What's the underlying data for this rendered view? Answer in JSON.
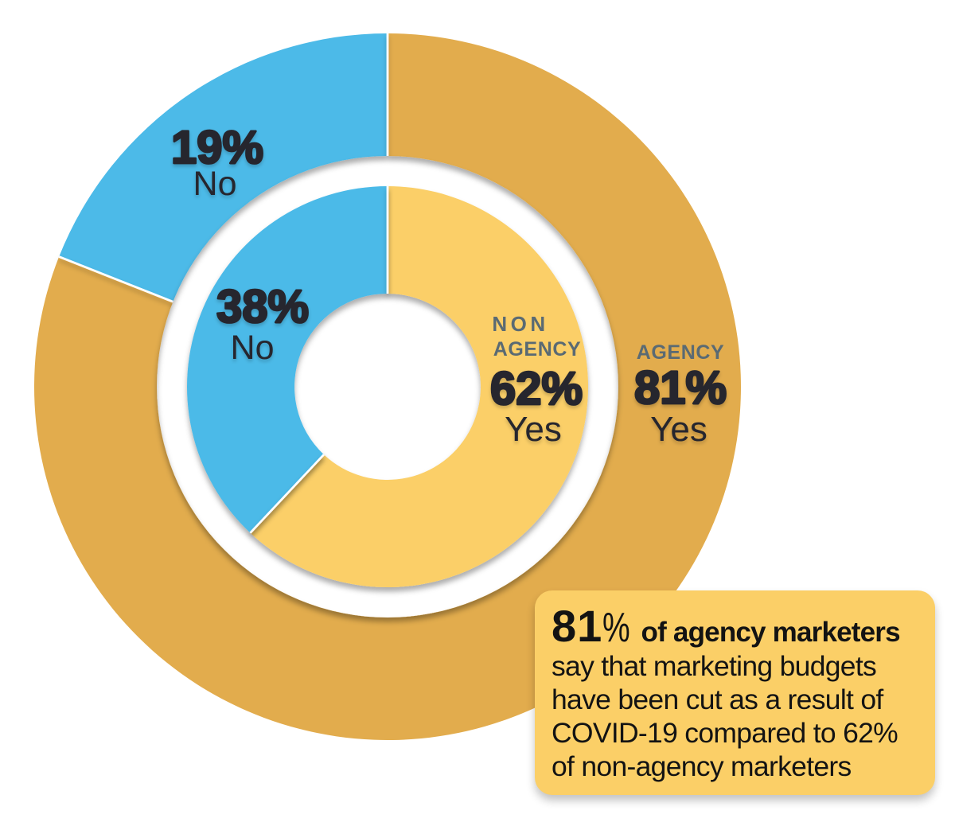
{
  "page": {
    "background": "#FFFFFF"
  },
  "chart_data": {
    "type": "pie",
    "subtype": "concentric-donut",
    "units": "%",
    "direction": "clockwise",
    "start_angle_deg": 0,
    "divider_color": "#FFFFFF",
    "rings": [
      {
        "name": "AGENCY",
        "position": "outer",
        "slices": [
          {
            "label": "Yes",
            "value": 81,
            "color": "#E2AC4D"
          },
          {
            "label": "No",
            "value": 19,
            "color": "#4CBAE8"
          }
        ]
      },
      {
        "name": "NON AGENCY",
        "position": "inner",
        "slices": [
          {
            "label": "Yes",
            "value": 62,
            "color": "#FBCF67"
          },
          {
            "label": "No",
            "value": 38,
            "color": "#4CBAE8"
          }
        ]
      }
    ]
  },
  "labels": {
    "outer_no_value": "19%",
    "outer_no_word": "No",
    "inner_no_value": "38%",
    "inner_no_word": "No",
    "inner_name_line1": "NON",
    "inner_name_line2": "AGENCY",
    "inner_yes_value": "62%",
    "inner_yes_word": "Yes",
    "outer_name": "AGENCY",
    "outer_yes_value": "81%",
    "outer_yes_word": "Yes"
  },
  "colors": {
    "outer_yes": "#E2AC4D",
    "inner_yes": "#FBCF67",
    "no": "#4CBAE8",
    "number_text": "#28272F",
    "ring_name_text": "#5A6A73",
    "callout_text": "#131313",
    "callout_background": "#FBCF67"
  },
  "callout": {
    "highlight_value": "81",
    "highlight_percent": "%",
    "highlight_bold": "of agency marketers",
    "lines": [
      "say that marketing budgets",
      "have been cut as a result of",
      "COVID-19 compared to 62%",
      "of non-agency marketers"
    ]
  }
}
